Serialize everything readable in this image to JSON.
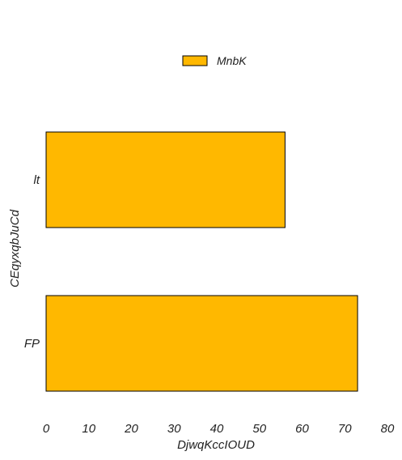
{
  "chart_data": {
    "type": "bar",
    "orientation": "horizontal",
    "categories": [
      "lt",
      "FP"
    ],
    "series": [
      {
        "name": "MnbK",
        "values": [
          56,
          73
        ],
        "color": "#ffb800"
      }
    ],
    "xlabel": "DjwqKccIOUD",
    "ylabel": "CEqyxqbJuCd",
    "xlim": [
      0,
      80
    ],
    "xticks": [
      "0",
      "10",
      "20",
      "30",
      "40",
      "50",
      "60",
      "70",
      "80"
    ],
    "grid": false,
    "legend_position": "top-center",
    "bar_edge_color": "#000000"
  }
}
